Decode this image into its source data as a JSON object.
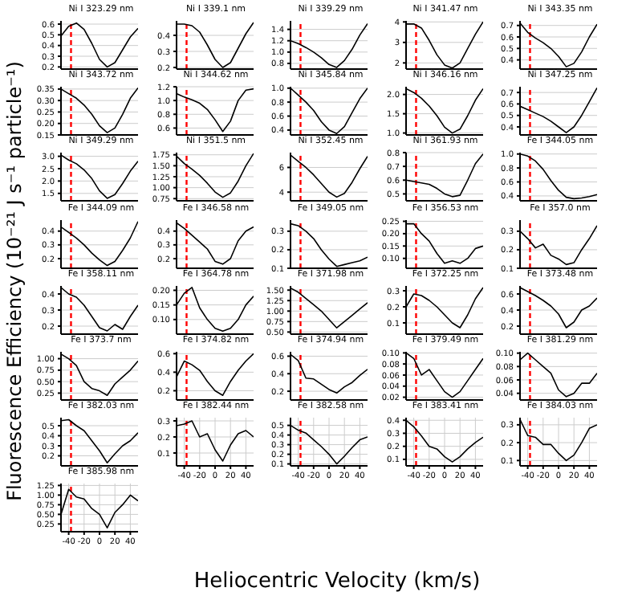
{
  "chart_data": [
    {
      "type": "line",
      "title": "Ni I 323.29 nm",
      "xlabel": "Heliocentric Velocity (km/s)",
      "ylabel": "Fluorescence Efficiency (10⁻²¹ J s⁻¹ particle⁻¹)",
      "x": [
        -50,
        -40,
        -30,
        -20,
        -10,
        0,
        10,
        20,
        30,
        40,
        50
      ],
      "series": [
        {
          "color": "#000000",
          "values": [
            0.49,
            0.58,
            0.61,
            0.55,
            0.42,
            0.27,
            0.2,
            0.24,
            0.36,
            0.48,
            0.56
          ]
        }
      ],
      "xlim": [
        -50,
        50
      ],
      "xticks": [
        -40,
        -20,
        0,
        20,
        40
      ],
      "ylim": [
        0.18,
        0.63
      ],
      "yticks": [
        0.2,
        0.3,
        0.4,
        0.5,
        0.6
      ],
      "grid": true,
      "tick_labels": "y",
      "ref_lines": [
        {
          "axis": "x",
          "value": -37,
          "color": "#ff0000",
          "line_style": "dashed"
        }
      ]
    },
    {
      "type": "line",
      "title": "Ni I 339.1 nm",
      "x": [
        -50,
        -40,
        -30,
        -20,
        -10,
        0,
        10,
        20,
        30,
        40,
        50
      ],
      "series": [
        {
          "color": "#000000",
          "values": [
            0.47,
            0.47,
            0.46,
            0.42,
            0.34,
            0.25,
            0.2,
            0.23,
            0.32,
            0.41,
            0.48
          ]
        }
      ],
      "xlim": [
        -50,
        50
      ],
      "xticks": [
        -40,
        -20,
        0,
        20,
        40
      ],
      "ylim": [
        0.19,
        0.49
      ],
      "yticks": [
        0.2,
        0.3,
        0.4
      ],
      "grid": true,
      "tick_labels": "y",
      "ref_lines": [
        {
          "axis": "x",
          "value": -37,
          "color": "#ff0000",
          "line_style": "dashed"
        }
      ]
    },
    {
      "type": "line",
      "title": "Ni I 339.29 nm",
      "x": [
        -50,
        -40,
        -30,
        -20,
        -10,
        0,
        10,
        20,
        30,
        40,
        50
      ],
      "series": [
        {
          "color": "#000000",
          "values": [
            1.2,
            1.15,
            1.08,
            1.0,
            0.9,
            0.78,
            0.73,
            0.85,
            1.05,
            1.3,
            1.5
          ]
        }
      ],
      "xlim": [
        -50,
        50
      ],
      "xticks": [
        -40,
        -20,
        0,
        20,
        40
      ],
      "ylim": [
        0.7,
        1.55
      ],
      "yticks": [
        0.8,
        {
          "value": 1,
          "label": "1.0"
        },
        1.2,
        1.4
      ],
      "grid": true,
      "tick_labels": "y",
      "ref_lines": [
        {
          "axis": "x",
          "value": -37,
          "color": "#ff0000",
          "line_style": "dashed"
        }
      ]
    },
    {
      "type": "line",
      "title": "Ni I 341.47 nm",
      "x": [
        -50,
        -40,
        -30,
        -20,
        -10,
        0,
        10,
        20,
        30,
        40,
        50
      ],
      "series": [
        {
          "color": "#000000",
          "values": [
            3.9,
            3.9,
            3.7,
            3.1,
            2.4,
            1.9,
            1.75,
            2.0,
            2.7,
            3.4,
            4.0
          ]
        }
      ],
      "xlim": [
        -50,
        50
      ],
      "xticks": [
        -40,
        -20,
        0,
        20,
        40
      ],
      "ylim": [
        1.7,
        4.05
      ],
      "yticks": [
        2,
        3,
        4
      ],
      "grid": true,
      "tick_labels": "y",
      "ref_lines": [
        {
          "axis": "x",
          "value": -37,
          "color": "#ff0000",
          "line_style": "dashed"
        }
      ]
    },
    {
      "type": "line",
      "title": "Ni I 343.35 nm",
      "x": [
        -50,
        -40,
        -30,
        -20,
        -10,
        0,
        10,
        20,
        30,
        40,
        50
      ],
      "series": [
        {
          "color": "#000000",
          "values": [
            0.72,
            0.64,
            0.59,
            0.55,
            0.5,
            0.43,
            0.34,
            0.37,
            0.47,
            0.6,
            0.71
          ]
        }
      ],
      "xlim": [
        -50,
        50
      ],
      "xticks": [
        -40,
        -20,
        0,
        20,
        40
      ],
      "ylim": [
        0.32,
        0.74
      ],
      "yticks": [
        0.4,
        0.5,
        0.6,
        0.7
      ],
      "grid": true,
      "tick_labels": "y",
      "ref_lines": [
        {
          "axis": "x",
          "value": -37,
          "color": "#ff0000",
          "line_style": "dashed"
        }
      ]
    },
    {
      "type": "line",
      "title": "Ni I 343.72 nm",
      "x": [
        -50,
        -40,
        -30,
        -20,
        -10,
        0,
        10,
        20,
        30,
        40,
        50
      ],
      "series": [
        {
          "color": "#000000",
          "values": [
            0.35,
            0.33,
            0.31,
            0.28,
            0.24,
            0.19,
            0.16,
            0.18,
            0.24,
            0.31,
            0.355
          ]
        }
      ],
      "xlim": [
        -50,
        50
      ],
      "xticks": [
        -40,
        -20,
        0,
        20,
        40
      ],
      "ylim": [
        0.15,
        0.36
      ],
      "yticks": [
        0.15,
        {
          "value": 0.2,
          "label": "0.20"
        },
        0.25,
        {
          "value": 0.3,
          "label": "0.30"
        },
        0.35
      ],
      "grid": true,
      "tick_labels": "y",
      "ref_lines": [
        {
          "axis": "x",
          "value": -37,
          "color": "#ff0000",
          "line_style": "dashed"
        }
      ]
    },
    {
      "type": "line",
      "title": "Ni I 344.62 nm",
      "x": [
        -50,
        -40,
        -30,
        -20,
        -10,
        0,
        10,
        20,
        30,
        40,
        50
      ],
      "series": [
        {
          "color": "#000000",
          "values": [
            1.1,
            1.05,
            1.01,
            0.96,
            0.87,
            0.72,
            0.55,
            0.7,
            1.0,
            1.15,
            1.17
          ]
        }
      ],
      "xlim": [
        -50,
        50
      ],
      "xticks": [
        -40,
        -20,
        0,
        20,
        40
      ],
      "ylim": [
        0.5,
        1.2
      ],
      "yticks": [
        0.6,
        0.8,
        {
          "value": 1,
          "label": "1.0"
        },
        1.2
      ],
      "grid": true,
      "tick_labels": "y",
      "ref_lines": [
        {
          "axis": "x",
          "value": -37,
          "color": "#ff0000",
          "line_style": "dashed"
        }
      ]
    },
    {
      "type": "line",
      "title": "Ni I 345.84 nm",
      "x": [
        -50,
        -40,
        -30,
        -20,
        -10,
        0,
        10,
        20,
        30,
        40,
        50
      ],
      "series": [
        {
          "color": "#000000",
          "values": [
            1.0,
            0.9,
            0.8,
            0.68,
            0.52,
            0.4,
            0.35,
            0.45,
            0.65,
            0.85,
            1.0
          ]
        }
      ],
      "xlim": [
        -50,
        50
      ],
      "xticks": [
        -40,
        -20,
        0,
        20,
        40
      ],
      "ylim": [
        0.33,
        1.02
      ],
      "yticks": [
        0.4,
        0.6,
        0.8,
        {
          "value": 1,
          "label": "1.0"
        }
      ],
      "grid": true,
      "tick_labels": "y",
      "ref_lines": [
        {
          "axis": "x",
          "value": -37,
          "color": "#ff0000",
          "line_style": "dashed"
        }
      ]
    },
    {
      "type": "line",
      "title": "Ni I 346.16 nm",
      "x": [
        -50,
        -40,
        -30,
        -20,
        -10,
        0,
        10,
        20,
        30,
        40,
        50
      ],
      "series": [
        {
          "color": "#000000",
          "values": [
            2.15,
            2.05,
            1.9,
            1.7,
            1.45,
            1.15,
            1.0,
            1.1,
            1.45,
            1.85,
            2.15
          ]
        }
      ],
      "xlim": [
        -50,
        50
      ],
      "xticks": [
        -40,
        -20,
        0,
        20,
        40
      ],
      "ylim": [
        0.95,
        2.2
      ],
      "yticks": [
        {
          "value": 1,
          "label": "1.0"
        },
        1.5,
        {
          "value": 2,
          "label": "2.0"
        }
      ],
      "grid": true,
      "tick_labels": "y",
      "ref_lines": [
        {
          "axis": "x",
          "value": -37,
          "color": "#ff0000",
          "line_style": "dashed"
        }
      ]
    },
    {
      "type": "line",
      "title": "Ni I 347.25 nm",
      "x": [
        -50,
        -40,
        -30,
        -20,
        -10,
        0,
        10,
        20,
        30,
        40,
        50
      ],
      "series": [
        {
          "color": "#000000",
          "values": [
            0.58,
            0.55,
            0.52,
            0.49,
            0.45,
            0.4,
            0.35,
            0.4,
            0.5,
            0.62,
            0.74
          ]
        }
      ],
      "xlim": [
        -50,
        50
      ],
      "xticks": [
        -40,
        -20,
        0,
        20,
        40
      ],
      "ylim": [
        0.33,
        0.75
      ],
      "yticks": [
        0.4,
        0.5,
        0.6,
        0.7
      ],
      "grid": true,
      "tick_labels": "y",
      "ref_lines": [
        {
          "axis": "x",
          "value": -37,
          "color": "#ff0000",
          "line_style": "dashed"
        }
      ]
    },
    {
      "type": "line",
      "title": "Ni I 349.29 nm",
      "x": [
        -50,
        -40,
        -30,
        -20,
        -10,
        0,
        10,
        20,
        30,
        40,
        50
      ],
      "series": [
        {
          "color": "#000000",
          "values": [
            3.05,
            2.85,
            2.7,
            2.45,
            2.1,
            1.6,
            1.3,
            1.45,
            1.9,
            2.4,
            2.8
          ]
        }
      ],
      "xlim": [
        -50,
        50
      ],
      "xticks": [
        -40,
        -20,
        0,
        20,
        40
      ],
      "ylim": [
        1.2,
        3.15
      ],
      "yticks": [
        1.5,
        {
          "value": 2,
          "label": "2.0"
        },
        2.5,
        {
          "value": 3,
          "label": "3.0"
        }
      ],
      "grid": true,
      "tick_labels": "y",
      "ref_lines": [
        {
          "axis": "x",
          "value": -37,
          "color": "#ff0000",
          "line_style": "dashed"
        }
      ]
    },
    {
      "type": "line",
      "title": "Ni I 351.5 nm",
      "x": [
        -50,
        -40,
        -30,
        -20,
        -10,
        0,
        10,
        20,
        30,
        40,
        50
      ],
      "series": [
        {
          "color": "#000000",
          "values": [
            1.72,
            1.55,
            1.42,
            1.28,
            1.1,
            0.9,
            0.78,
            0.88,
            1.15,
            1.5,
            1.78
          ]
        }
      ],
      "xlim": [
        -50,
        50
      ],
      "xticks": [
        -40,
        -20,
        0,
        20,
        40
      ],
      "ylim": [
        0.7,
        1.8
      ],
      "yticks": [
        0.75,
        {
          "value": 1,
          "label": "1.00"
        },
        1.25,
        {
          "value": 1.5,
          "label": "1.50"
        },
        1.75
      ],
      "grid": true,
      "tick_labels": "y",
      "ref_lines": [
        {
          "axis": "x",
          "value": -37,
          "color": "#ff0000",
          "line_style": "dashed"
        }
      ]
    },
    {
      "type": "line",
      "title": "Ni I 352.45 nm",
      "x": [
        -50,
        -40,
        -30,
        -20,
        -10,
        0,
        10,
        20,
        30,
        40,
        50
      ],
      "series": [
        {
          "color": "#000000",
          "values": [
            7.0,
            6.5,
            6.0,
            5.4,
            4.7,
            4.0,
            3.6,
            3.9,
            4.8,
            5.9,
            6.9
          ]
        }
      ],
      "xlim": [
        -50,
        50
      ],
      "xticks": [
        -40,
        -20,
        0,
        20,
        40
      ],
      "ylim": [
        3.3,
        7.2
      ],
      "yticks": [
        4,
        6
      ],
      "grid": true,
      "tick_labels": "y",
      "ref_lines": [
        {
          "axis": "x",
          "value": -37,
          "color": "#ff0000",
          "line_style": "dashed"
        }
      ]
    },
    {
      "type": "line",
      "title": "Ni I 361.93 nm",
      "x": [
        -50,
        -40,
        -30,
        -20,
        -10,
        0,
        10,
        20,
        30,
        40,
        50
      ],
      "series": [
        {
          "color": "#000000",
          "values": [
            0.6,
            0.59,
            0.58,
            0.57,
            0.54,
            0.5,
            0.48,
            0.49,
            0.6,
            0.72,
            0.79
          ]
        }
      ],
      "xlim": [
        -50,
        50
      ],
      "xticks": [
        -40,
        -20,
        0,
        20,
        40
      ],
      "ylim": [
        0.45,
        0.8
      ],
      "yticks": [
        0.5,
        0.6,
        0.7,
        0.8
      ],
      "grid": true,
      "tick_labels": "y",
      "ref_lines": [
        {
          "axis": "x",
          "value": -37,
          "color": "#ff0000",
          "line_style": "dashed"
        }
      ]
    },
    {
      "type": "line",
      "title": "Fe I 344.05 nm",
      "x": [
        -50,
        -40,
        -30,
        -20,
        -10,
        0,
        10,
        20,
        30,
        40,
        50
      ],
      "series": [
        {
          "color": "#000000",
          "values": [
            1.0,
            0.97,
            0.9,
            0.78,
            0.62,
            0.48,
            0.38,
            0.36,
            0.37,
            0.39,
            0.42
          ]
        }
      ],
      "xlim": [
        -50,
        50
      ],
      "xticks": [
        -40,
        -20,
        0,
        20,
        40
      ],
      "ylim": [
        0.33,
        1.02
      ],
      "yticks": [
        0.4,
        0.6,
        0.8,
        {
          "value": 1,
          "label": "1.0"
        }
      ],
      "grid": true,
      "tick_labels": "y",
      "ref_lines": [
        {
          "axis": "x",
          "value": -37,
          "color": "#ff0000",
          "line_style": "dashed"
        }
      ]
    },
    {
      "type": "line",
      "title": "Fe I 344.09 nm",
      "x": [
        -50,
        -40,
        -30,
        -20,
        -10,
        0,
        10,
        20,
        30,
        40,
        50
      ],
      "series": [
        {
          "color": "#000000",
          "values": [
            0.43,
            0.39,
            0.35,
            0.3,
            0.24,
            0.19,
            0.15,
            0.18,
            0.26,
            0.35,
            0.47
          ]
        }
      ],
      "xlim": [
        -50,
        50
      ],
      "xticks": [
        -40,
        -20,
        0,
        20,
        40
      ],
      "ylim": [
        0.13,
        0.48
      ],
      "yticks": [
        0.2,
        0.3,
        0.4
      ],
      "grid": true,
      "tick_labels": "y",
      "ref_lines": [
        {
          "axis": "x",
          "value": -37,
          "color": "#ff0000",
          "line_style": "dashed"
        }
      ]
    },
    {
      "type": "line",
      "title": "Fe I 346.58 nm",
      "x": [
        -50,
        -40,
        -30,
        -20,
        -10,
        0,
        10,
        20,
        30,
        40,
        50
      ],
      "series": [
        {
          "color": "#000000",
          "values": [
            0.46,
            0.42,
            0.37,
            0.32,
            0.27,
            0.18,
            0.16,
            0.2,
            0.33,
            0.4,
            0.43
          ]
        }
      ],
      "xlim": [
        -50,
        50
      ],
      "xticks": [
        -40,
        -20,
        0,
        20,
        40
      ],
      "ylim": [
        0.13,
        0.48
      ],
      "yticks": [
        0.2,
        0.3,
        0.4
      ],
      "grid": true,
      "tick_labels": "y",
      "ref_lines": [
        {
          "axis": "x",
          "value": -37,
          "color": "#ff0000",
          "line_style": "dashed"
        }
      ]
    },
    {
      "type": "line",
      "title": "Fe I 349.05 nm",
      "x": [
        -50,
        -40,
        -30,
        -20,
        -10,
        0,
        10,
        20,
        30,
        40,
        50
      ],
      "series": [
        {
          "color": "#000000",
          "values": [
            0.34,
            0.33,
            0.3,
            0.26,
            0.2,
            0.15,
            0.11,
            0.12,
            0.13,
            0.14,
            0.16
          ]
        }
      ],
      "xlim": [
        -50,
        50
      ],
      "xticks": [
        -40,
        -20,
        0,
        20,
        40
      ],
      "ylim": [
        0.1,
        0.36
      ],
      "yticks": [
        0.1,
        0.2,
        0.3
      ],
      "grid": true,
      "tick_labels": "y",
      "ref_lines": [
        {
          "axis": "x",
          "value": -37,
          "color": "#ff0000",
          "line_style": "dashed"
        }
      ]
    },
    {
      "type": "line",
      "title": "Fe I 356.53 nm",
      "x": [
        -50,
        -40,
        -30,
        -20,
        -10,
        0,
        10,
        20,
        30,
        40,
        50
      ],
      "series": [
        {
          "color": "#000000",
          "values": [
            0.24,
            0.24,
            0.2,
            0.17,
            0.12,
            0.08,
            0.09,
            0.08,
            0.1,
            0.14,
            0.15
          ]
        }
      ],
      "xlim": [
        -50,
        50
      ],
      "xticks": [
        -40,
        -20,
        0,
        20,
        40
      ],
      "ylim": [
        0.06,
        0.255
      ],
      "yticks": [
        {
          "value": 0.1,
          "label": "0.10"
        },
        0.15,
        {
          "value": 0.2,
          "label": "0.20"
        },
        0.25
      ],
      "grid": true,
      "tick_labels": "y",
      "ref_lines": [
        {
          "axis": "x",
          "value": -37,
          "color": "#ff0000",
          "line_style": "dashed"
        }
      ]
    },
    {
      "type": "line",
      "title": "Fe I 357.0 nm",
      "x": [
        -50,
        -40,
        -30,
        -20,
        -10,
        0,
        10,
        20,
        30,
        40,
        50
      ],
      "series": [
        {
          "color": "#000000",
          "values": [
            0.3,
            0.26,
            0.21,
            0.23,
            0.17,
            0.15,
            0.12,
            0.13,
            0.2,
            0.26,
            0.33
          ]
        }
      ],
      "xlim": [
        -50,
        50
      ],
      "xticks": [
        -40,
        -20,
        0,
        20,
        40
      ],
      "ylim": [
        0.1,
        0.36
      ],
      "yticks": [
        0.1,
        0.2,
        0.3
      ],
      "grid": true,
      "tick_labels": "y",
      "ref_lines": [
        {
          "axis": "x",
          "value": -37,
          "color": "#ff0000",
          "line_style": "dashed"
        }
      ]
    },
    {
      "type": "line",
      "title": "Fe I 358.11 nm",
      "x": [
        -50,
        -40,
        -30,
        -20,
        -10,
        0,
        10,
        20,
        30,
        40,
        50
      ],
      "series": [
        {
          "color": "#000000",
          "values": [
            0.44,
            0.4,
            0.38,
            0.33,
            0.26,
            0.19,
            0.17,
            0.21,
            0.18,
            0.26,
            0.33
          ]
        }
      ],
      "xlim": [
        -50,
        50
      ],
      "xticks": [
        -40,
        -20,
        0,
        20,
        40
      ],
      "ylim": [
        0.15,
        0.45
      ],
      "yticks": [
        0.2,
        0.3,
        0.4
      ],
      "grid": true,
      "tick_labels": "y",
      "ref_lines": [
        {
          "axis": "x",
          "value": -37,
          "color": "#ff0000",
          "line_style": "dashed"
        }
      ]
    },
    {
      "type": "line",
      "title": "Fe I 364.78 nm",
      "x": [
        -50,
        -40,
        -30,
        -20,
        -10,
        0,
        10,
        20,
        30,
        40,
        50
      ],
      "series": [
        {
          "color": "#000000",
          "values": [
            0.15,
            0.19,
            0.21,
            0.14,
            0.1,
            0.07,
            0.06,
            0.07,
            0.1,
            0.15,
            0.18
          ]
        }
      ],
      "xlim": [
        -50,
        50
      ],
      "xticks": [
        -40,
        -20,
        0,
        20,
        40
      ],
      "ylim": [
        0.05,
        0.215
      ],
      "yticks": [
        {
          "value": 0.1,
          "label": "0.10"
        },
        0.15,
        {
          "value": 0.2,
          "label": "0.20"
        }
      ],
      "grid": true,
      "tick_labels": "y",
      "ref_lines": [
        {
          "axis": "x",
          "value": -37,
          "color": "#ff0000",
          "line_style": "dashed"
        }
      ]
    },
    {
      "type": "line",
      "title": "Fe I 371.98 nm",
      "x": [
        -50,
        -40,
        -30,
        -20,
        -10,
        0,
        10,
        20,
        30,
        40,
        50
      ],
      "series": [
        {
          "color": "#000000",
          "values": [
            1.55,
            1.45,
            1.3,
            1.15,
            1.0,
            0.8,
            0.6,
            0.75,
            0.9,
            1.05,
            1.2
          ]
        }
      ],
      "xlim": [
        -50,
        50
      ],
      "xticks": [
        -40,
        -20,
        0,
        20,
        40
      ],
      "ylim": [
        0.45,
        1.6
      ],
      "yticks": [
        {
          "value": 0.5,
          "label": "0.50"
        },
        0.75,
        {
          "value": 1,
          "label": "1.00"
        },
        1.25,
        {
          "value": 1.5,
          "label": "1.50"
        }
      ],
      "grid": true,
      "tick_labels": "y",
      "ref_lines": [
        {
          "axis": "x",
          "value": -37,
          "color": "#ff0000",
          "line_style": "dashed"
        }
      ]
    },
    {
      "type": "line",
      "title": "Fe I 372.25 nm",
      "x": [
        -50,
        -40,
        -30,
        -20,
        -10,
        0,
        10,
        20,
        30,
        40,
        50
      ],
      "series": [
        {
          "color": "#000000",
          "values": [
            0.2,
            0.28,
            0.27,
            0.24,
            0.2,
            0.15,
            0.1,
            0.07,
            0.15,
            0.25,
            0.32
          ]
        }
      ],
      "xlim": [
        -50,
        50
      ],
      "xticks": [
        -40,
        -20,
        0,
        20,
        40
      ],
      "ylim": [
        0.03,
        0.33
      ],
      "yticks": [
        0.1,
        0.2,
        0.3
      ],
      "grid": true,
      "tick_labels": "y",
      "ref_lines": [
        {
          "axis": "x",
          "value": -37,
          "color": "#ff0000",
          "line_style": "dashed"
        }
      ]
    },
    {
      "type": "line",
      "title": "Fe I 373.48 nm",
      "x": [
        -50,
        -40,
        -30,
        -20,
        -10,
        0,
        10,
        20,
        30,
        40,
        50
      ],
      "series": [
        {
          "color": "#000000",
          "values": [
            0.68,
            0.63,
            0.58,
            0.52,
            0.45,
            0.35,
            0.18,
            0.25,
            0.4,
            0.45,
            0.55
          ]
        }
      ],
      "xlim": [
        -50,
        50
      ],
      "xticks": [
        -40,
        -20,
        0,
        20,
        40
      ],
      "ylim": [
        0.1,
        0.7
      ],
      "yticks": [
        0.2,
        0.4,
        0.6
      ],
      "grid": true,
      "tick_labels": "y",
      "ref_lines": [
        {
          "axis": "x",
          "value": -37,
          "color": "#ff0000",
          "line_style": "dashed"
        }
      ]
    },
    {
      "type": "line",
      "title": "Fe I 373.7 nm",
      "x": [
        -50,
        -40,
        -30,
        -20,
        -10,
        0,
        10,
        20,
        30,
        40,
        50
      ],
      "series": [
        {
          "color": "#000000",
          "values": [
            1.1,
            1.0,
            0.85,
            0.5,
            0.35,
            0.3,
            0.2,
            0.45,
            0.6,
            0.75,
            0.95
          ]
        }
      ],
      "xlim": [
        -50,
        50
      ],
      "xticks": [
        -40,
        -20,
        0,
        20,
        40
      ],
      "ylim": [
        0.1,
        1.15
      ],
      "yticks": [
        0.25,
        {
          "value": 0.5,
          "label": "0.50"
        },
        0.75,
        {
          "value": 1,
          "label": "1.00"
        }
      ],
      "grid": true,
      "tick_labels": "y",
      "ref_lines": [
        {
          "axis": "x",
          "value": -37,
          "color": "#ff0000",
          "line_style": "dashed"
        }
      ]
    },
    {
      "type": "line",
      "title": "Fe I 374.82 nm",
      "x": [
        -50,
        -40,
        -30,
        -20,
        -10,
        0,
        10,
        20,
        30,
        40,
        50
      ],
      "series": [
        {
          "color": "#000000",
          "values": [
            0.35,
            0.52,
            0.48,
            0.42,
            0.3,
            0.2,
            0.15,
            0.3,
            0.42,
            0.52,
            0.6
          ]
        }
      ],
      "xlim": [
        -50,
        50
      ],
      "xticks": [
        -40,
        -20,
        0,
        20,
        40
      ],
      "ylim": [
        0.1,
        0.62
      ],
      "yticks": [
        0.2,
        0.4,
        0.6
      ],
      "grid": true,
      "tick_labels": "y",
      "ref_lines": [
        {
          "axis": "x",
          "value": -37,
          "color": "#ff0000",
          "line_style": "dashed"
        }
      ]
    },
    {
      "type": "line",
      "title": "Fe I 374.94 nm",
      "x": [
        -50,
        -40,
        -30,
        -20,
        -10,
        0,
        10,
        20,
        30,
        40,
        50
      ],
      "series": [
        {
          "color": "#000000",
          "values": [
            0.62,
            0.55,
            0.35,
            0.34,
            0.28,
            0.22,
            0.18,
            0.25,
            0.3,
            0.38,
            0.45
          ]
        }
      ],
      "xlim": [
        -50,
        50
      ],
      "xticks": [
        -40,
        -20,
        0,
        20,
        40
      ],
      "ylim": [
        0.1,
        0.65
      ],
      "yticks": [
        0.2,
        0.4,
        0.6
      ],
      "grid": true,
      "tick_labels": "y",
      "ref_lines": [
        {
          "axis": "x",
          "value": -37,
          "color": "#ff0000",
          "line_style": "dashed"
        }
      ]
    },
    {
      "type": "line",
      "title": "Fe I 379.49 nm",
      "x": [
        -50,
        -40,
        -30,
        -20,
        -10,
        0,
        10,
        20,
        30,
        40,
        50
      ],
      "series": [
        {
          "color": "#000000",
          "values": [
            0.1,
            0.09,
            0.06,
            0.07,
            0.05,
            0.03,
            0.02,
            0.03,
            0.05,
            0.07,
            0.09
          ]
        }
      ],
      "xlim": [
        -50,
        50
      ],
      "xticks": [
        -40,
        -20,
        0,
        20,
        40
      ],
      "ylim": [
        0.015,
        0.102
      ],
      "yticks": [
        0.02,
        0.04,
        0.06,
        0.08,
        {
          "value": 0.1,
          "label": "0.10"
        }
      ],
      "grid": true,
      "tick_labels": "y",
      "ref_lines": [
        {
          "axis": "x",
          "value": -37,
          "color": "#ff0000",
          "line_style": "dashed"
        }
      ]
    },
    {
      "type": "line",
      "title": "Fe I 381.29 nm",
      "x": [
        -50,
        -40,
        -30,
        -20,
        -10,
        0,
        10,
        20,
        30,
        40,
        50
      ],
      "series": [
        {
          "color": "#000000",
          "values": [
            0.09,
            0.1,
            0.09,
            0.08,
            0.07,
            0.045,
            0.035,
            0.04,
            0.055,
            0.055,
            0.07
          ]
        }
      ],
      "xlim": [
        -50,
        50
      ],
      "xticks": [
        -40,
        -20,
        0,
        20,
        40
      ],
      "ylim": [
        0.03,
        0.102
      ],
      "yticks": [
        0.04,
        0.06,
        0.08,
        {
          "value": 0.1,
          "label": "0.10"
        }
      ],
      "grid": true,
      "tick_labels": "y",
      "ref_lines": [
        {
          "axis": "x",
          "value": -37,
          "color": "#ff0000",
          "line_style": "dashed"
        }
      ]
    },
    {
      "type": "line",
      "title": "Fe I 382.03 nm",
      "x": [
        -50,
        -40,
        -30,
        -20,
        -10,
        0,
        10,
        20,
        30,
        40,
        50
      ],
      "series": [
        {
          "color": "#000000",
          "values": [
            0.55,
            0.56,
            0.5,
            0.45,
            0.35,
            0.25,
            0.13,
            0.22,
            0.3,
            0.35,
            0.43
          ]
        }
      ],
      "xlim": [
        -50,
        50
      ],
      "xticks": [
        -40,
        -20,
        0,
        20,
        40
      ],
      "ylim": [
        0.1,
        0.58
      ],
      "yticks": [
        0.2,
        0.3,
        0.4,
        0.5
      ],
      "grid": true,
      "tick_labels": "y",
      "ref_lines": [
        {
          "axis": "x",
          "value": -37,
          "color": "#ff0000",
          "line_style": "dashed"
        }
      ]
    },
    {
      "type": "line",
      "title": "Fe I 382.44 nm",
      "x": [
        -50,
        -40,
        -30,
        -20,
        -10,
        0,
        10,
        20,
        30,
        40,
        50
      ],
      "series": [
        {
          "color": "#000000",
          "values": [
            0.27,
            0.28,
            0.3,
            0.2,
            0.22,
            0.12,
            0.05,
            0.15,
            0.22,
            0.24,
            0.2
          ]
        }
      ],
      "xlim": [
        -50,
        50
      ],
      "xticks": [
        -40,
        -20,
        0,
        20,
        40
      ],
      "ylim": [
        0.02,
        0.32
      ],
      "yticks": [
        0.1,
        0.2,
        0.3
      ],
      "grid": true,
      "ref_lines": [
        {
          "axis": "x",
          "value": -37,
          "color": "#ff0000",
          "line_style": "dashed"
        }
      ]
    },
    {
      "type": "line",
      "title": "Fe I 382.58 nm",
      "x": [
        -50,
        -40,
        -30,
        -20,
        -10,
        0,
        10,
        20,
        30,
        40,
        50
      ],
      "series": [
        {
          "color": "#000000",
          "values": [
            0.5,
            0.45,
            0.42,
            0.35,
            0.28,
            0.2,
            0.1,
            0.18,
            0.27,
            0.35,
            0.38
          ]
        }
      ],
      "xlim": [
        -50,
        50
      ],
      "xticks": [
        -40,
        -20,
        0,
        20,
        40
      ],
      "ylim": [
        0.08,
        0.58
      ],
      "yticks": [
        0.1,
        0.2,
        0.3,
        0.4,
        0.5
      ],
      "grid": true,
      "ref_lines": [
        {
          "axis": "x",
          "value": -37,
          "color": "#ff0000",
          "line_style": "dashed"
        }
      ]
    },
    {
      "type": "line",
      "title": "Fe I 383.41 nm",
      "x": [
        -50,
        -40,
        -30,
        -20,
        -10,
        0,
        10,
        20,
        30,
        40,
        50
      ],
      "series": [
        {
          "color": "#000000",
          "values": [
            0.4,
            0.35,
            0.28,
            0.2,
            0.18,
            0.12,
            0.08,
            0.12,
            0.18,
            0.23,
            0.27
          ]
        }
      ],
      "xlim": [
        -50,
        50
      ],
      "xticks": [
        -40,
        -20,
        0,
        20,
        40
      ],
      "ylim": [
        0.05,
        0.42
      ],
      "yticks": [
        0.1,
        0.2,
        0.3,
        0.4
      ],
      "grid": true,
      "ref_lines": [
        {
          "axis": "x",
          "value": -37,
          "color": "#ff0000",
          "line_style": "dashed"
        }
      ]
    },
    {
      "type": "line",
      "title": "Fe I 384.03 nm",
      "x": [
        -50,
        -40,
        -30,
        -20,
        -10,
        0,
        10,
        20,
        30,
        40,
        50
      ],
      "series": [
        {
          "color": "#000000",
          "values": [
            0.33,
            0.24,
            0.23,
            0.19,
            0.19,
            0.14,
            0.1,
            0.13,
            0.2,
            0.28,
            0.3
          ]
        }
      ],
      "xlim": [
        -50,
        50
      ],
      "xticks": [
        -40,
        -20,
        0,
        20,
        40
      ],
      "ylim": [
        0.07,
        0.34
      ],
      "yticks": [
        0.1,
        0.2,
        0.3
      ],
      "grid": true,
      "ref_lines": [
        {
          "axis": "x",
          "value": -37,
          "color": "#ff0000",
          "line_style": "dashed"
        }
      ]
    },
    {
      "type": "line",
      "title": "Fe I 385.98 nm",
      "x": [
        -50,
        -40,
        -30,
        -20,
        -10,
        0,
        10,
        20,
        30,
        40,
        50
      ],
      "series": [
        {
          "color": "#000000",
          "values": [
            0.5,
            1.15,
            0.95,
            0.9,
            0.65,
            0.5,
            0.15,
            0.55,
            0.75,
            1.0,
            0.85
          ]
        }
      ],
      "xlim": [
        -50,
        50
      ],
      "xticks": [
        -40,
        -20,
        0,
        20,
        40
      ],
      "ylim": [
        0.05,
        1.3
      ],
      "yticks": [
        0.25,
        {
          "value": 0.5,
          "label": "0.50"
        },
        0.75,
        {
          "value": 1,
          "label": "1.00"
        },
        1.25
      ],
      "grid": true,
      "ref_lines": [
        {
          "axis": "x",
          "value": -37,
          "color": "#ff0000",
          "line_style": "dashed"
        }
      ]
    }
  ]
}
